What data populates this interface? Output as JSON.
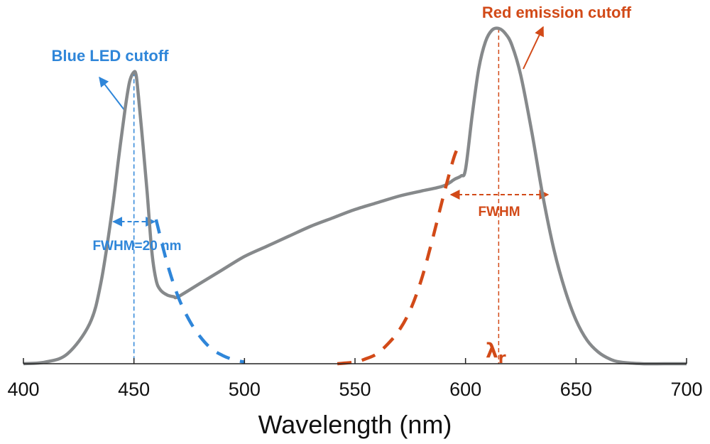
{
  "chart_data": {
    "type": "line",
    "xlabel": "Wavelength (nm)",
    "ylabel": "",
    "xlim": [
      400,
      700
    ],
    "ylim": [
      0,
      1
    ],
    "x_ticks": [
      400,
      450,
      500,
      550,
      600,
      650,
      700
    ],
    "x_tick_labels": [
      "400",
      "450",
      "500",
      "550",
      "600",
      "650",
      "700"
    ],
    "grid": false,
    "series": [
      {
        "style": "solid",
        "color": "#86898b",
        "x": [
          400,
          410,
          420,
          430,
          435,
          440,
          443,
          446,
          448,
          450,
          451,
          452,
          454,
          456,
          458,
          460,
          462,
          465,
          468,
          470,
          480,
          490,
          500,
          510,
          520,
          530,
          540,
          550,
          560,
          570,
          580,
          590,
          595,
          598,
          600,
          603,
          606,
          609,
          612,
          615,
          618,
          621,
          625,
          630,
          635,
          640,
          645,
          650,
          655,
          660,
          665,
          670,
          680,
          690,
          700
        ],
        "y": [
          0.0,
          0.005,
          0.03,
          0.12,
          0.24,
          0.45,
          0.61,
          0.76,
          0.84,
          0.87,
          0.86,
          0.8,
          0.66,
          0.51,
          0.34,
          0.25,
          0.22,
          0.205,
          0.2,
          0.2,
          0.24,
          0.28,
          0.32,
          0.35,
          0.38,
          0.41,
          0.435,
          0.46,
          0.48,
          0.5,
          0.515,
          0.53,
          0.55,
          0.56,
          0.58,
          0.74,
          0.88,
          0.96,
          0.995,
          1.0,
          0.985,
          0.95,
          0.86,
          0.69,
          0.5,
          0.34,
          0.22,
          0.13,
          0.07,
          0.035,
          0.015,
          0.005,
          0.0,
          0.0,
          0.0
        ]
      },
      {
        "style": "dashed",
        "color": "#2f86d9",
        "x": [
          460,
          465,
          470,
          475,
          480,
          485,
          490,
          495,
          500
        ],
        "y": [
          0.43,
          0.3,
          0.2,
          0.13,
          0.08,
          0.045,
          0.025,
          0.012,
          0.005
        ]
      },
      {
        "style": "dashed",
        "color": "#d24a18",
        "x": [
          542,
          550,
          555,
          560,
          565,
          570,
          575,
          580,
          585,
          590,
          595,
          598
        ],
        "y": [
          0.0,
          0.005,
          0.015,
          0.03,
          0.06,
          0.1,
          0.16,
          0.25,
          0.37,
          0.5,
          0.62,
          0.66
        ]
      }
    ],
    "annotations": {
      "blue_cutoff": "Blue LED cutoff",
      "red_cutoff": "Red emission cutoff",
      "blue_fwhm": "FWHM=20 nm",
      "red_fwhm": "FWHM",
      "lambda": "λ",
      "lambda_sub": "r"
    },
    "colors": {
      "spectrum": "#86898b",
      "blue": "#2f86d9",
      "red": "#d24a18",
      "axis": "#222222"
    }
  }
}
